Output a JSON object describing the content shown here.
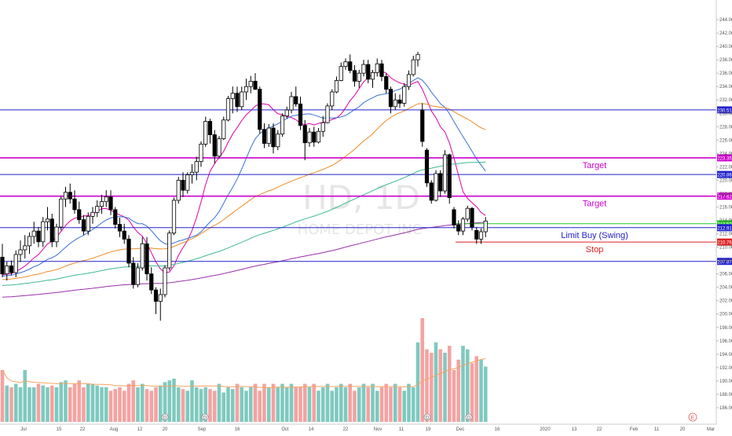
{
  "chart_data": {
    "type": "candlestick",
    "symbol": "HD",
    "interval": "1D",
    "company": "HOME DEPOT INC",
    "y_axis": {
      "ylim": [
        184,
        246
      ],
      "ticks": [
        186,
        188,
        190,
        192,
        194,
        196,
        198,
        200,
        202,
        204,
        206,
        208,
        210,
        212,
        214,
        216,
        218,
        220,
        222,
        224,
        226,
        228,
        230,
        232,
        234,
        236,
        238,
        240,
        242,
        244
      ]
    },
    "x_axis": {
      "labels": [
        "Jul",
        "15",
        "22",
        "Aug",
        "12",
        "20",
        "Sep",
        "16",
        "Oct",
        "14",
        "22",
        "Nov",
        "11",
        "19",
        "Dec",
        "16",
        "2020",
        "13",
        "22",
        "Feb",
        "11",
        "20",
        "Mar"
      ]
    },
    "candles": [
      [
        208.5,
        210.5,
        205.5,
        206.0
      ],
      [
        206.0,
        207.8,
        205.0,
        207.2
      ],
      [
        207.2,
        208.0,
        205.8,
        206.2
      ],
      [
        206.2,
        209.5,
        205.5,
        208.9
      ],
      [
        208.9,
        211.0,
        207.8,
        209.6
      ],
      [
        209.6,
        211.8,
        208.3,
        210.2
      ],
      [
        210.2,
        212.2,
        209.0,
        211.6
      ],
      [
        211.6,
        213.8,
        210.5,
        212.4
      ],
      [
        212.4,
        213.0,
        210.0,
        210.8
      ],
      [
        210.8,
        214.5,
        210.0,
        213.8
      ],
      [
        213.8,
        216.0,
        212.5,
        214.2
      ],
      [
        214.2,
        215.0,
        210.0,
        210.8
      ],
      [
        210.8,
        213.5,
        210.0,
        213.0
      ],
      [
        213.0,
        217.6,
        212.5,
        217.2
      ],
      [
        217.2,
        219.0,
        216.0,
        218.2
      ],
      [
        218.2,
        219.5,
        216.5,
        217.2
      ],
      [
        217.2,
        218.5,
        215.0,
        215.6
      ],
      [
        215.6,
        216.8,
        213.5,
        214.1
      ],
      [
        214.1,
        214.8,
        211.8,
        212.4
      ],
      [
        212.4,
        215.2,
        211.8,
        214.6
      ],
      [
        214.6,
        216.0,
        213.5,
        215.2
      ],
      [
        215.2,
        217.0,
        214.5,
        216.1
      ],
      [
        216.1,
        217.8,
        215.0,
        216.8
      ],
      [
        216.8,
        218.5,
        216.0,
        217.5
      ],
      [
        217.5,
        218.5,
        214.8,
        215.6
      ],
      [
        215.6,
        216.0,
        212.8,
        213.4
      ],
      [
        213.4,
        214.4,
        211.5,
        212.4
      ],
      [
        212.4,
        213.5,
        210.5,
        211.2
      ],
      [
        211.2,
        211.8,
        207.0,
        207.6
      ],
      [
        207.6,
        208.5,
        203.8,
        204.4
      ],
      [
        204.4,
        207.6,
        204.0,
        206.9
      ],
      [
        206.9,
        211.5,
        206.5,
        210.5
      ],
      [
        210.5,
        211.5,
        205.0,
        206.0
      ],
      [
        206.0,
        207.0,
        203.0,
        203.6
      ],
      [
        203.6,
        204.0,
        200.0,
        201.9
      ],
      [
        201.9,
        203.8,
        199.0,
        202.9
      ],
      [
        202.9,
        207.3,
        202.5,
        206.9
      ],
      [
        206.9,
        212.5,
        206.5,
        212.1
      ],
      [
        212.1,
        217.4,
        211.8,
        217.0
      ],
      [
        217.0,
        220.5,
        216.5,
        220.0
      ],
      [
        220.0,
        221.2,
        217.5,
        218.5
      ],
      [
        218.5,
        221.2,
        218.0,
        220.8
      ],
      [
        220.8,
        222.4,
        219.5,
        221.2
      ],
      [
        221.2,
        223.5,
        220.0,
        222.8
      ],
      [
        222.8,
        225.8,
        222.0,
        225.4
      ],
      [
        225.4,
        229.5,
        225.0,
        228.8
      ],
      [
        228.8,
        229.2,
        225.5,
        226.8
      ],
      [
        226.8,
        227.5,
        222.5,
        223.6
      ],
      [
        223.6,
        226.6,
        223.2,
        226.2
      ],
      [
        226.2,
        229.5,
        226.0,
        229.0
      ],
      [
        229.0,
        232.6,
        228.8,
        232.2
      ],
      [
        232.2,
        234.0,
        230.0,
        233.0
      ],
      [
        233.0,
        234.0,
        230.2,
        231.0
      ],
      [
        231.0,
        234.0,
        230.5,
        233.2
      ],
      [
        233.2,
        235.2,
        232.0,
        234.0
      ],
      [
        234.0,
        235.6,
        233.0,
        234.8
      ],
      [
        234.8,
        236.0,
        233.5,
        233.6
      ],
      [
        233.6,
        234.0,
        227.0,
        227.6
      ],
      [
        227.6,
        228.5,
        224.8,
        225.5
      ],
      [
        225.5,
        228.4,
        225.0,
        227.8
      ],
      [
        227.8,
        228.5,
        224.0,
        225.0
      ],
      [
        225.0,
        227.5,
        224.5,
        226.9
      ],
      [
        226.9,
        230.0,
        226.5,
        229.6
      ],
      [
        229.6,
        231.0,
        229.2,
        230.5
      ],
      [
        230.5,
        233.2,
        230.0,
        232.5
      ],
      [
        232.5,
        234.0,
        231.0,
        231.4
      ],
      [
        231.4,
        232.5,
        227.5,
        228.2
      ],
      [
        228.2,
        229.0,
        223.0,
        225.6
      ],
      [
        225.6,
        227.8,
        225.0,
        227.2
      ],
      [
        227.2,
        228.0,
        225.0,
        225.7
      ],
      [
        225.7,
        227.8,
        225.5,
        227.3
      ],
      [
        227.3,
        229.6,
        226.5,
        228.6
      ],
      [
        228.6,
        231.5,
        228.5,
        231.1
      ],
      [
        231.1,
        233.6,
        230.5,
        233.2
      ],
      [
        233.2,
        235.5,
        233.0,
        234.9
      ],
      [
        234.9,
        237.6,
        234.8,
        237.0
      ],
      [
        237.0,
        238.2,
        236.5,
        237.7
      ],
      [
        237.7,
        238.8,
        236.0,
        236.4
      ],
      [
        236.4,
        237.2,
        234.0,
        234.8
      ],
      [
        234.8,
        236.5,
        233.8,
        236.0
      ],
      [
        236.0,
        238.0,
        235.5,
        237.3
      ],
      [
        237.3,
        238.0,
        234.5,
        235.1
      ],
      [
        235.1,
        236.5,
        233.8,
        236.1
      ],
      [
        236.1,
        238.2,
        235.5,
        237.4
      ],
      [
        237.4,
        238.0,
        234.8,
        235.5
      ],
      [
        235.5,
        236.0,
        233.0,
        233.6
      ],
      [
        233.6,
        234.0,
        230.0,
        231.0
      ],
      [
        231.0,
        233.0,
        230.5,
        232.0
      ],
      [
        232.0,
        232.8,
        230.8,
        231.5
      ],
      [
        231.5,
        234.5,
        231.0,
        234.0
      ],
      [
        234.0,
        236.4,
        233.5,
        235.8
      ],
      [
        235.8,
        238.6,
        235.5,
        238.0
      ],
      [
        238.0,
        239.2,
        237.0,
        238.8
      ],
      [
        230.5,
        231.5,
        225.0,
        225.8
      ],
      [
        224.5,
        224.8,
        219.0,
        219.6
      ],
      [
        219.6,
        220.0,
        216.5,
        217.0
      ],
      [
        217.0,
        221.5,
        216.8,
        221.0
      ],
      [
        221.0,
        221.5,
        217.5,
        218.4
      ],
      [
        218.4,
        224.5,
        218.0,
        223.8
      ],
      [
        223.8,
        224.0,
        216.5,
        217.4
      ],
      [
        215.6,
        216.0,
        212.8,
        213.3
      ],
      [
        213.3,
        214.0,
        211.8,
        212.4
      ],
      [
        212.4,
        214.5,
        211.8,
        214.2
      ],
      [
        214.2,
        216.2,
        213.8,
        215.8
      ],
      [
        215.8,
        216.0,
        212.5,
        213.0
      ],
      [
        212.5,
        213.0,
        210.5,
        211.2
      ],
      [
        211.2,
        212.8,
        210.5,
        212.3
      ],
      [
        212.3,
        214.5,
        211.5,
        213.9
      ]
    ],
    "volume": [
      30,
      21,
      20,
      22,
      20,
      30,
      20,
      20,
      22,
      21,
      20,
      21,
      20,
      23,
      24,
      20,
      22,
      24,
      20,
      22,
      22,
      21,
      20,
      20,
      18,
      19,
      20,
      18,
      22,
      24,
      20,
      22,
      19,
      18,
      20,
      21,
      23,
      24,
      25,
      20,
      19,
      18,
      24,
      20,
      19,
      20,
      19,
      18,
      22,
      17,
      20,
      19,
      22,
      20,
      18,
      20,
      22,
      18,
      22,
      20,
      22,
      20,
      22,
      20,
      22,
      20,
      20,
      22,
      20,
      22,
      18,
      20,
      22,
      18,
      20,
      22,
      20,
      22,
      18,
      20,
      22,
      20,
      22,
      18,
      20,
      22,
      20,
      22,
      20,
      18,
      22,
      20,
      46,
      60,
      42,
      40,
      46,
      42,
      40,
      44,
      30,
      36,
      44,
      42,
      34,
      38,
      36,
      32
    ],
    "overlay_lines": [
      {
        "label": "",
        "price": 230.51,
        "tag": "230.51",
        "color": "#2222cc"
      },
      {
        "label": "Target",
        "price": 223.35,
        "tag": "223.35",
        "color": "#cc00cc"
      },
      {
        "label": "",
        "price": 220.86,
        "tag": "220.86",
        "color": "#2222cc"
      },
      {
        "label": "Target",
        "price": 217.62,
        "tag": "217.62",
        "color": "#cc00cc"
      },
      {
        "label": "",
        "price": 213.5,
        "tag": "213.50",
        "color": "#22cc22"
      },
      {
        "label": "Limit Buy (Swing)",
        "price": 212.91,
        "tag": "212.91",
        "color": "#2222cc"
      },
      {
        "label": "Stop",
        "price": 210.76,
        "tag": "210.76",
        "color": "#dd2222"
      },
      {
        "label": "",
        "price": 207.87,
        "tag": "207.87",
        "color": "#2222cc"
      }
    ],
    "moving_averages": [
      {
        "color": "#e000a8",
        "period": 10
      },
      {
        "color": "#3a6fd8",
        "period": 20
      },
      {
        "color": "#f08a24",
        "period": 50
      },
      {
        "color": "#3dbb8f",
        "period": 100
      },
      {
        "color": "#9b2fae",
        "period": 200
      }
    ],
    "markers": [
      "D",
      "D",
      "E",
      "D",
      "D",
      "E"
    ],
    "colors": {
      "up_volume": "#7fc9bf",
      "down_volume": "#f3a3a1",
      "up_candle_fill": "#ffffff",
      "down_candle_fill": "#000000",
      "axis_text": "#555555",
      "watermark": "#e6e6e6"
    }
  }
}
